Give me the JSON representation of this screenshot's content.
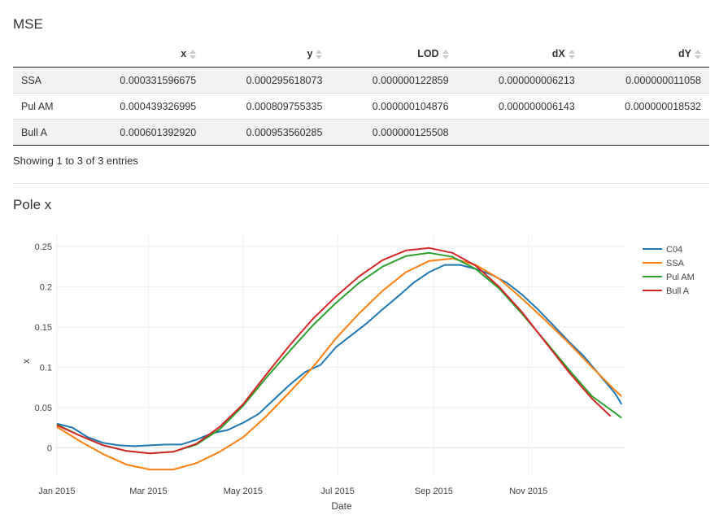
{
  "mse": {
    "title": "MSE",
    "columns": [
      "",
      "x",
      "y",
      "LOD",
      "dX",
      "dY"
    ],
    "rows": [
      [
        "SSA",
        "0.000331596675",
        "0.000295618073",
        "0.000000122859",
        "0.000000006213",
        "0.000000011058"
      ],
      [
        "Pul AM",
        "0.000439326995",
        "0.000809755335",
        "0.000000104876",
        "0.000000006143",
        "0.000000018532"
      ],
      [
        "Bull A",
        "0.000601392920",
        "0.000953560285",
        "0.000000125508",
        "",
        ""
      ]
    ],
    "info": "Showing 1 to 3 of 3 entries"
  },
  "pole": {
    "title": "Pole x"
  },
  "chart_data": {
    "type": "line",
    "title": "Pole x",
    "xlabel": "Date",
    "ylabel": "x",
    "x_tick_labels": [
      "Jan 2015",
      "Mar 2015",
      "May 2015",
      "Jul 2015",
      "Sep 2015",
      "Nov 2015"
    ],
    "x_tick_dates": [
      "2015-01-01",
      "2015-03-01",
      "2015-05-01",
      "2015-07-01",
      "2015-09-01",
      "2015-11-01"
    ],
    "y_ticks": [
      0,
      0.05,
      0.1,
      0.15,
      0.2,
      0.25
    ],
    "y_tick_labels": [
      "0",
      "0.05",
      "0.1",
      "0.15",
      "0.2",
      "0.25"
    ],
    "xlim": [
      "2014-12-31",
      "2016-01-02"
    ],
    "ylim": [
      -0.035,
      0.265
    ],
    "grid": true,
    "legend_position": "top-right",
    "series": [
      {
        "name": "C04",
        "color": "#1f77b4",
        "x": [
          "2015-01-01",
          "2015-01-11",
          "2015-01-21",
          "2015-01-31",
          "2015-02-10",
          "2015-02-20",
          "2015-03-02",
          "2015-03-12",
          "2015-03-22",
          "2015-04-01",
          "2015-04-11",
          "2015-04-21",
          "2015-05-01",
          "2015-05-11",
          "2015-05-21",
          "2015-05-31",
          "2015-06-10",
          "2015-06-20",
          "2015-06-30",
          "2015-07-10",
          "2015-07-20",
          "2015-07-30",
          "2015-08-09",
          "2015-08-19",
          "2015-08-29",
          "2015-09-08",
          "2015-09-18",
          "2015-09-28",
          "2015-10-08",
          "2015-10-18",
          "2015-10-28",
          "2015-11-07",
          "2015-11-17",
          "2015-11-27",
          "2015-12-07",
          "2015-12-17",
          "2015-12-27",
          "2015-12-31"
        ],
        "values": [
          0.03,
          0.025,
          0.013,
          0.006,
          0.003,
          0.002,
          0.003,
          0.004,
          0.004,
          0.01,
          0.018,
          0.022,
          0.031,
          0.042,
          0.06,
          0.078,
          0.094,
          0.103,
          0.125,
          0.14,
          0.155,
          0.172,
          0.188,
          0.205,
          0.218,
          0.227,
          0.227,
          0.222,
          0.215,
          0.205,
          0.19,
          0.172,
          0.152,
          0.132,
          0.113,
          0.09,
          0.067,
          0.054
        ]
      },
      {
        "name": "SSA",
        "color": "#ff7f0e",
        "x": [
          "2015-01-01",
          "2015-01-16",
          "2015-01-31",
          "2015-02-15",
          "2015-03-02",
          "2015-03-17",
          "2015-04-01",
          "2015-04-16",
          "2015-05-01",
          "2015-05-16",
          "2015-05-31",
          "2015-06-15",
          "2015-06-30",
          "2015-07-15",
          "2015-07-30",
          "2015-08-14",
          "2015-08-29",
          "2015-09-13",
          "2015-09-28",
          "2015-10-13",
          "2015-10-28",
          "2015-11-12",
          "2015-11-27",
          "2015-12-12",
          "2015-12-27",
          "2015-12-31"
        ],
        "values": [
          0.026,
          0.008,
          -0.008,
          -0.021,
          -0.027,
          -0.027,
          -0.019,
          -0.005,
          0.013,
          0.039,
          0.069,
          0.1,
          0.136,
          0.167,
          0.195,
          0.218,
          0.232,
          0.235,
          0.227,
          0.21,
          0.185,
          0.158,
          0.13,
          0.1,
          0.071,
          0.064
        ]
      },
      {
        "name": "Pul AM",
        "color": "#2ca02c",
        "x": [
          "2015-01-01",
          "2015-01-16",
          "2015-01-31",
          "2015-02-15",
          "2015-03-02",
          "2015-03-17",
          "2015-04-01",
          "2015-04-16",
          "2015-05-01",
          "2015-05-16",
          "2015-05-31",
          "2015-06-15",
          "2015-06-30",
          "2015-07-15",
          "2015-07-30",
          "2015-08-14",
          "2015-08-29",
          "2015-09-13",
          "2015-09-28",
          "2015-10-13",
          "2015-10-28",
          "2015-11-12",
          "2015-11-27",
          "2015-12-12",
          "2015-12-27",
          "2015-12-31"
        ],
        "values": [
          0.029,
          0.015,
          0.003,
          -0.004,
          -0.007,
          -0.005,
          0.004,
          0.023,
          0.052,
          0.087,
          0.12,
          0.152,
          0.18,
          0.205,
          0.225,
          0.238,
          0.242,
          0.237,
          0.222,
          0.198,
          0.166,
          0.132,
          0.097,
          0.064,
          0.043,
          0.037
        ]
      },
      {
        "name": "Bull A",
        "color": "#d62728",
        "x": [
          "2015-01-01",
          "2015-01-16",
          "2015-01-31",
          "2015-02-15",
          "2015-03-02",
          "2015-03-17",
          "2015-04-01",
          "2015-04-16",
          "2015-05-01",
          "2015-05-16",
          "2015-05-31",
          "2015-06-15",
          "2015-06-30",
          "2015-07-15",
          "2015-07-30",
          "2015-08-14",
          "2015-08-29",
          "2015-09-13",
          "2015-09-28",
          "2015-10-13",
          "2015-10-28",
          "2015-11-12",
          "2015-11-27",
          "2015-12-12",
          "2015-12-24"
        ],
        "values": [
          0.028,
          0.015,
          0.003,
          -0.004,
          -0.007,
          -0.005,
          0.005,
          0.026,
          0.054,
          0.091,
          0.127,
          0.16,
          0.188,
          0.213,
          0.233,
          0.245,
          0.248,
          0.242,
          0.226,
          0.2,
          0.168,
          0.131,
          0.094,
          0.061,
          0.039
        ]
      }
    ]
  }
}
